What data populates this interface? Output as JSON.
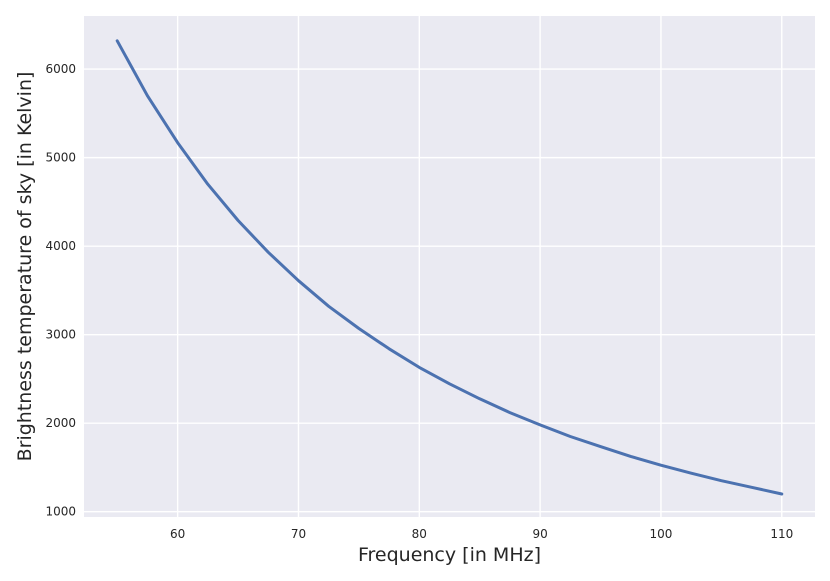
{
  "chart_data": {
    "type": "line",
    "title": "",
    "xlabel": "Frequency [in MHz]",
    "ylabel": "Brightness temperature of sky [in Kelvin]",
    "xlim": [
      52.25,
      112.75
    ],
    "ylim": [
      940,
      6600
    ],
    "xticks": [
      60,
      70,
      80,
      90,
      100,
      110
    ],
    "yticks": [
      1000,
      2000,
      3000,
      4000,
      5000,
      6000
    ],
    "grid": true,
    "background": "#eaeaf2",
    "grid_color": "#ffffff",
    "series": [
      {
        "color": "#4c72b0",
        "x": [
          55,
          57.5,
          60,
          62.5,
          65,
          67.5,
          70,
          72.5,
          75,
          77.5,
          80,
          82.5,
          85,
          87.5,
          90,
          92.5,
          95,
          97.5,
          100,
          102.5,
          105,
          107.5,
          110
        ],
        "y": [
          6320,
          5700,
          5170,
          4700,
          4290,
          3930,
          3610,
          3320,
          3070,
          2840,
          2630,
          2445,
          2275,
          2120,
          1980,
          1850,
          1735,
          1625,
          1525,
          1435,
          1350,
          1275,
          1200
        ]
      }
    ]
  }
}
